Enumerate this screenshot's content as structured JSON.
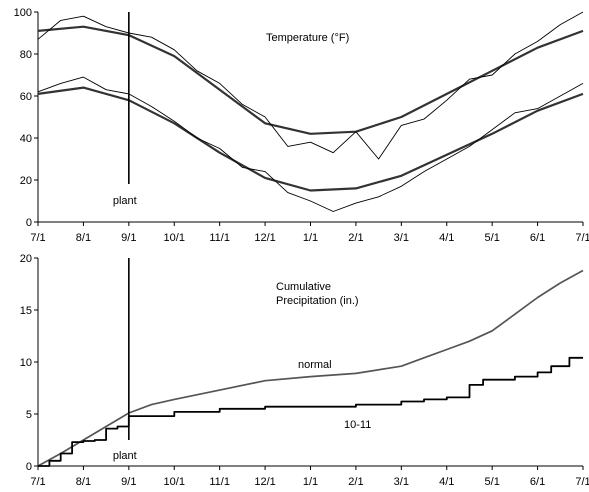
{
  "chart_data": [
    {
      "type": "line",
      "title": "Temperature (°F)",
      "xlabel": "",
      "ylabel": "",
      "x_ticks": [
        "7/1",
        "8/1",
        "9/1",
        "10/1",
        "11/1",
        "12/1",
        "1/1",
        "2/1",
        "3/1",
        "4/1",
        "5/1",
        "6/1",
        "7/1"
      ],
      "xlim": [
        0,
        12
      ],
      "ylim": [
        0,
        100
      ],
      "y_ticks": [
        0,
        20,
        40,
        60,
        80,
        100
      ],
      "grid": false,
      "annotation": {
        "text": "plant",
        "x": 2,
        "y": 18
      },
      "series": [
        {
          "role": "normal-high",
          "style": "thick",
          "x": [
            0,
            1,
            2,
            3,
            4,
            5,
            6,
            7,
            8,
            9,
            10,
            11,
            12
          ],
          "y": [
            91,
            93,
            89,
            79,
            63,
            47,
            42,
            43,
            50,
            61,
            72,
            83,
            91
          ]
        },
        {
          "role": "normal-low",
          "style": "thick",
          "x": [
            0,
            1,
            2,
            3,
            4,
            5,
            6,
            7,
            8,
            9,
            10,
            11,
            12
          ],
          "y": [
            61,
            64,
            58,
            47,
            33,
            21,
            15,
            16,
            22,
            32,
            42,
            53,
            61
          ]
        },
        {
          "role": "daily-high",
          "style": "thin",
          "x": [
            0,
            0.5,
            1,
            1.5,
            2,
            2.5,
            3,
            3.5,
            4,
            4.5,
            5,
            5.5,
            6,
            6.5,
            7,
            7.5,
            8,
            8.5,
            9,
            9.5,
            10,
            10.5,
            11,
            11.5,
            12
          ],
          "y": [
            87,
            96,
            98,
            93,
            90,
            88,
            82,
            72,
            66,
            56,
            50,
            36,
            38,
            33,
            43,
            30,
            46,
            49,
            58,
            68,
            70,
            80,
            86,
            94,
            100
          ]
        },
        {
          "role": "daily-low",
          "style": "thin",
          "x": [
            0,
            0.5,
            1,
            1.5,
            2,
            2.5,
            3,
            3.5,
            4,
            4.5,
            5,
            5.5,
            6,
            6.5,
            7,
            7.5,
            8,
            8.5,
            9,
            9.5,
            10,
            10.5,
            11,
            11.5,
            12
          ],
          "y": [
            62,
            66,
            69,
            63,
            61,
            55,
            48,
            40,
            35,
            26,
            24,
            14,
            10,
            5,
            9,
            12,
            17,
            24,
            30,
            36,
            44,
            52,
            54,
            60,
            66
          ]
        }
      ]
    },
    {
      "type": "line",
      "title": "Cumulative Precipitation (in.)",
      "title_lines": [
        "Cumulative",
        "Precipitation (in.)"
      ],
      "xlabel": "",
      "ylabel": "",
      "x_ticks": [
        "7/1",
        "8/1",
        "9/1",
        "10/1",
        "11/1",
        "12/1",
        "1/1",
        "2/1",
        "3/1",
        "4/1",
        "5/1",
        "6/1",
        "7/1"
      ],
      "xlim": [
        0,
        12
      ],
      "ylim": [
        0,
        20
      ],
      "y_ticks": [
        0,
        5,
        10,
        15,
        20
      ],
      "grid": false,
      "annotation": {
        "text": "plant",
        "x": 2,
        "y": 0
      },
      "series": [
        {
          "name": "normal",
          "style": "gray",
          "x": [
            0,
            0.5,
            1,
            1.5,
            2,
            2.5,
            3,
            4,
            5,
            6,
            7,
            8,
            8.5,
            9,
            9.5,
            10,
            10.5,
            11,
            11.5,
            12
          ],
          "y": [
            0,
            1.2,
            2.5,
            3.8,
            5.1,
            5.9,
            6.4,
            7.3,
            8.2,
            8.6,
            8.9,
            9.6,
            10.4,
            11.2,
            12.0,
            13.0,
            14.6,
            16.2,
            17.6,
            18.8
          ]
        },
        {
          "name": "10-11",
          "style": "black-step",
          "x": [
            0,
            0.25,
            0.5,
            0.75,
            1,
            1.25,
            1.5,
            1.75,
            2,
            3,
            4,
            5,
            6,
            7,
            8,
            8.5,
            9,
            9.5,
            9.8,
            10.5,
            11,
            11.3,
            11.7,
            12
          ],
          "y": [
            0,
            0.5,
            1.2,
            2.3,
            2.4,
            2.5,
            3.6,
            3.8,
            4.8,
            5.2,
            5.5,
            5.7,
            5.7,
            5.9,
            6.2,
            6.4,
            6.6,
            7.8,
            8.3,
            8.6,
            9.0,
            9.6,
            10.4,
            10.4
          ]
        }
      ]
    }
  ]
}
